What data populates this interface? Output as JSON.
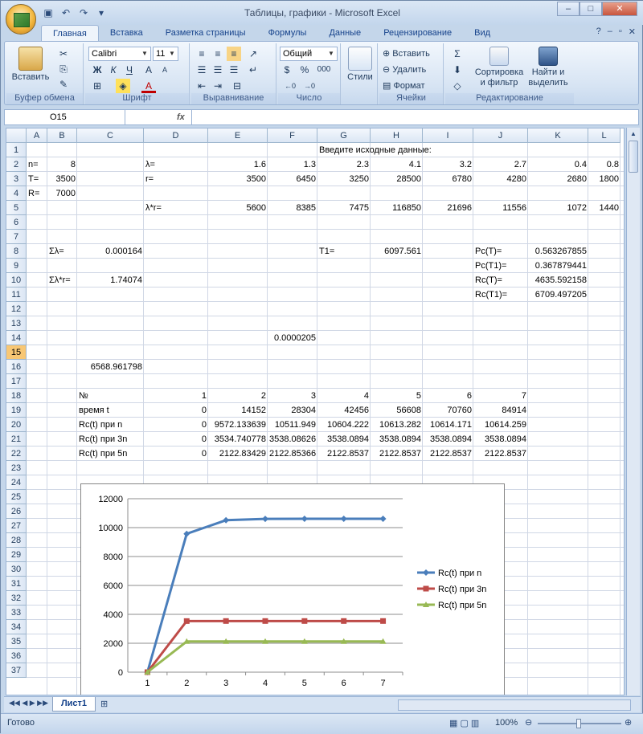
{
  "window": {
    "title": "Таблицы, графики - Microsoft Excel"
  },
  "ribbon": {
    "tabs": [
      "Главная",
      "Вставка",
      "Разметка страницы",
      "Формулы",
      "Данные",
      "Рецензирование",
      "Вид"
    ],
    "clipboard": {
      "paste": "Вставить",
      "group": "Буфер обмена"
    },
    "font": {
      "name": "Calibri",
      "size": "11",
      "group": "Шрифт",
      "bold": "Ж",
      "italic": "К",
      "underline": "Ч"
    },
    "align": {
      "group": "Выравнивание"
    },
    "number": {
      "format": "Общий",
      "group": "Число",
      "percent": "%",
      "thousands": "000"
    },
    "styles": {
      "label": "Стили"
    },
    "cells": {
      "insert": "Вставить",
      "delete": "Удалить",
      "format": "Формат",
      "group": "Ячейки"
    },
    "editing": {
      "sort": "Сортировка",
      "sort2": "и фильтр",
      "find": "Найти и",
      "find2": "выделить",
      "group": "Редактирование"
    }
  },
  "formula_bar": {
    "namebox": "O15",
    "fx": "fx",
    "content": ""
  },
  "columns": [
    "A",
    "B",
    "C",
    "D",
    "E",
    "F",
    "G",
    "H",
    "I",
    "J",
    "K",
    "L"
  ],
  "rows": [
    "1",
    "2",
    "3",
    "4",
    "5",
    "6",
    "7",
    "8",
    "9",
    "10",
    "11",
    "12",
    "13",
    "14",
    "15",
    "16",
    "17",
    "18",
    "19",
    "20",
    "21",
    "22",
    "23",
    "24",
    "25",
    "26",
    "27",
    "28",
    "29",
    "30",
    "31",
    "32",
    "33",
    "34",
    "35",
    "36",
    "37"
  ],
  "cells": {
    "G1": "Введите исходные данные:",
    "A2": "n=",
    "B2": "8",
    "D2": "λ=",
    "E2": "1.6",
    "F2": "1.3",
    "G2": "2.3",
    "H2": "4.1",
    "I2": "3.2",
    "J2": "2.7",
    "K2": "0.4",
    "L2": "0.8",
    "A3": "T=",
    "B3": "3500",
    "D3": "r=",
    "E3": "3500",
    "F3": "6450",
    "G3": "3250",
    "H3": "28500",
    "I3": "6780",
    "J3": "4280",
    "K3": "2680",
    "L3": "1800",
    "A4": "R=",
    "B4": "7000",
    "D5": "λ*r=",
    "E5": "5600",
    "F5": "8385",
    "G5": "7475",
    "H5": "116850",
    "I5": "21696",
    "J5": "11556",
    "K5": "1072",
    "L5": "1440",
    "B8": "Σλ=",
    "C8": "0.000164",
    "G8": "T1=",
    "H8": "6097.561",
    "J8": "Pc(T)=",
    "K8": "0.563267855",
    "J9": "Pc(T1)=",
    "K9": "0.367879441",
    "B10": "Σλ*r=",
    "C10": "1.74074",
    "J10": "Rc(T)=",
    "K10": "4635.592158",
    "J11": "Rc(T1)=",
    "K11": "6709.497205",
    "F14": "0.0000205",
    "C16": "6568.961798",
    "C18": "№",
    "D18": "1",
    "E18": "2",
    "F18": "3",
    "G18": "4",
    "H18": "5",
    "I18": "6",
    "J18": "7",
    "C19": "время t",
    "D19": "0",
    "E19": "14152",
    "F19": "28304",
    "G19": "42456",
    "H19": "56608",
    "I19": "70760",
    "J19": "84914",
    "C20": "Rc(t) при n",
    "D20": "0",
    "E20": "9572.133639",
    "F20": "10511.949",
    "G20": "10604.222",
    "H20": "10613.282",
    "I20": "10614.171",
    "J20": "10614.259",
    "C21": "Rc(t) при 3n",
    "D21": "0",
    "E21": "3534.740778",
    "F21": "3538.08626",
    "G21": "3538.0894",
    "H21": "3538.0894",
    "I21": "3538.0894",
    "J21": "3538.0894",
    "C22": "Rc(t) при 5n",
    "D22": "0",
    "E22": "2122.83429",
    "F22": "2122.85366",
    "G22": "2122.8537",
    "H22": "2122.8537",
    "I22": "2122.8537",
    "J22": "2122.8537"
  },
  "chart_data": {
    "type": "line",
    "x": [
      "1",
      "2",
      "3",
      "4",
      "5",
      "6",
      "7"
    ],
    "series": [
      {
        "name": "Rc(t) при n",
        "color": "#4a7ebb",
        "marker": "diamond",
        "values": [
          0,
          9572.13,
          10511.95,
          10604.22,
          10613.28,
          10614.17,
          10614.26
        ]
      },
      {
        "name": "Rc(t) при 3n",
        "color": "#be4b48",
        "marker": "square",
        "values": [
          0,
          3534.74,
          3538.09,
          3538.09,
          3538.09,
          3538.09,
          3538.09
        ]
      },
      {
        "name": "Rc(t) при 5n",
        "color": "#98b954",
        "marker": "triangle",
        "values": [
          0,
          2122.83,
          2122.85,
          2122.85,
          2122.85,
          2122.85,
          2122.85
        ]
      }
    ],
    "yticks": [
      "0",
      "2000",
      "4000",
      "6000",
      "8000",
      "10000",
      "12000"
    ],
    "ylim": [
      0,
      12000
    ],
    "legend": "right",
    "grid": true
  },
  "sheet_tabs": [
    "Лист1"
  ],
  "status": {
    "text": "Готово",
    "zoom": "100%"
  }
}
